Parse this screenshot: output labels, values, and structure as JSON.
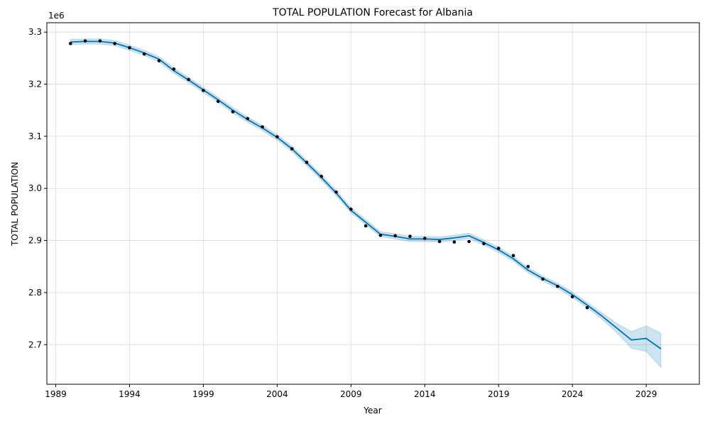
{
  "chart_data": {
    "type": "line",
    "title": "TOTAL POPULATION Forecast for Albania",
    "xlabel": "Year",
    "ylabel": "TOTAL POPULATION",
    "y_scale_label": "1e6",
    "xlim": [
      1988.4,
      2032.6
    ],
    "ylim": [
      2.624,
      3.318
    ],
    "x_ticks": [
      1989,
      1994,
      1999,
      2004,
      2009,
      2014,
      2019,
      2024,
      2029
    ],
    "x_tick_labels": [
      "1989",
      "1994",
      "1999",
      "2004",
      "2009",
      "2014",
      "2019",
      "2024",
      "2029"
    ],
    "y_ticks": [
      2.7,
      2.8,
      2.9,
      3.0,
      3.1,
      3.2,
      3.3
    ],
    "y_tick_labels": [
      "2.7",
      "2.8",
      "2.9",
      "3.0",
      "3.1",
      "3.2",
      "3.3"
    ],
    "grid": true,
    "colors": {
      "forecast_line": "#0072b2",
      "interval_fill": "#0072b2",
      "observed_points": "#000000",
      "grid": "#d9d9d9"
    },
    "series": [
      {
        "kind": "observed-points",
        "x": [
          1990,
          1991,
          1992,
          1993,
          1994,
          1995,
          1996,
          1997,
          1998,
          1999,
          2000,
          2001,
          2002,
          2003,
          2004,
          2005,
          2006,
          2007,
          2008,
          2009,
          2010,
          2011,
          2012,
          2013,
          2014,
          2015,
          2016,
          2017,
          2018,
          2019,
          2020,
          2021,
          2022,
          2023,
          2024,
          2025
        ],
        "values": [
          3.278,
          3.283,
          3.283,
          3.278,
          3.27,
          3.258,
          3.245,
          3.229,
          3.209,
          3.188,
          3.167,
          3.147,
          3.134,
          3.118,
          3.099,
          3.076,
          3.05,
          3.023,
          2.993,
          2.96,
          2.928,
          2.91,
          2.909,
          2.908,
          2.904,
          2.898,
          2.897,
          2.898,
          2.894,
          2.885,
          2.871,
          2.85,
          2.826,
          2.812,
          2.792,
          2.771
        ]
      },
      {
        "kind": "forecast-line",
        "x": [
          1990,
          1991,
          1992,
          1993,
          1994,
          1995,
          1996,
          1997,
          1998,
          1999,
          2000,
          2001,
          2002,
          2003,
          2004,
          2005,
          2006,
          2007,
          2008,
          2009,
          2010,
          2011,
          2012,
          2013,
          2014,
          2015,
          2016,
          2017,
          2018,
          2019,
          2020,
          2021,
          2022,
          2023,
          2024,
          2025,
          2026,
          2027,
          2028,
          2029,
          2030
        ],
        "values": [
          3.281,
          3.282,
          3.282,
          3.279,
          3.27,
          3.26,
          3.248,
          3.226,
          3.208,
          3.189,
          3.17,
          3.15,
          3.132,
          3.116,
          3.098,
          3.076,
          3.049,
          3.021,
          2.991,
          2.958,
          2.935,
          2.912,
          2.908,
          2.903,
          2.903,
          2.902,
          2.905,
          2.909,
          2.896,
          2.882,
          2.865,
          2.843,
          2.827,
          2.813,
          2.796,
          2.776,
          2.755,
          2.732,
          2.709,
          2.712,
          2.692
        ]
      },
      {
        "kind": "uncertainty-interval",
        "x": [
          1990,
          1991,
          1992,
          1993,
          1994,
          1995,
          1996,
          1997,
          1998,
          1999,
          2000,
          2001,
          2002,
          2003,
          2004,
          2005,
          2006,
          2007,
          2008,
          2009,
          2010,
          2011,
          2012,
          2013,
          2014,
          2015,
          2016,
          2017,
          2018,
          2019,
          2020,
          2021,
          2022,
          2023,
          2024,
          2025,
          2026,
          2027,
          2028,
          2029,
          2030
        ],
        "lower": [
          3.276,
          3.277,
          3.277,
          3.274,
          3.265,
          3.255,
          3.243,
          3.221,
          3.203,
          3.184,
          3.165,
          3.145,
          3.127,
          3.111,
          3.093,
          3.071,
          3.044,
          3.016,
          2.986,
          2.953,
          2.93,
          2.907,
          2.903,
          2.898,
          2.898,
          2.897,
          2.9,
          2.904,
          2.891,
          2.877,
          2.86,
          2.838,
          2.822,
          2.808,
          2.791,
          2.771,
          2.749,
          2.723,
          2.693,
          2.687,
          2.656
        ],
        "upper": [
          3.286,
          3.287,
          3.287,
          3.284,
          3.275,
          3.265,
          3.253,
          3.231,
          3.213,
          3.194,
          3.175,
          3.155,
          3.137,
          3.121,
          3.103,
          3.081,
          3.054,
          3.026,
          2.996,
          2.963,
          2.94,
          2.917,
          2.913,
          2.908,
          2.908,
          2.907,
          2.91,
          2.914,
          2.901,
          2.887,
          2.87,
          2.848,
          2.832,
          2.818,
          2.801,
          2.781,
          2.761,
          2.741,
          2.725,
          2.736,
          2.722
        ]
      }
    ]
  }
}
